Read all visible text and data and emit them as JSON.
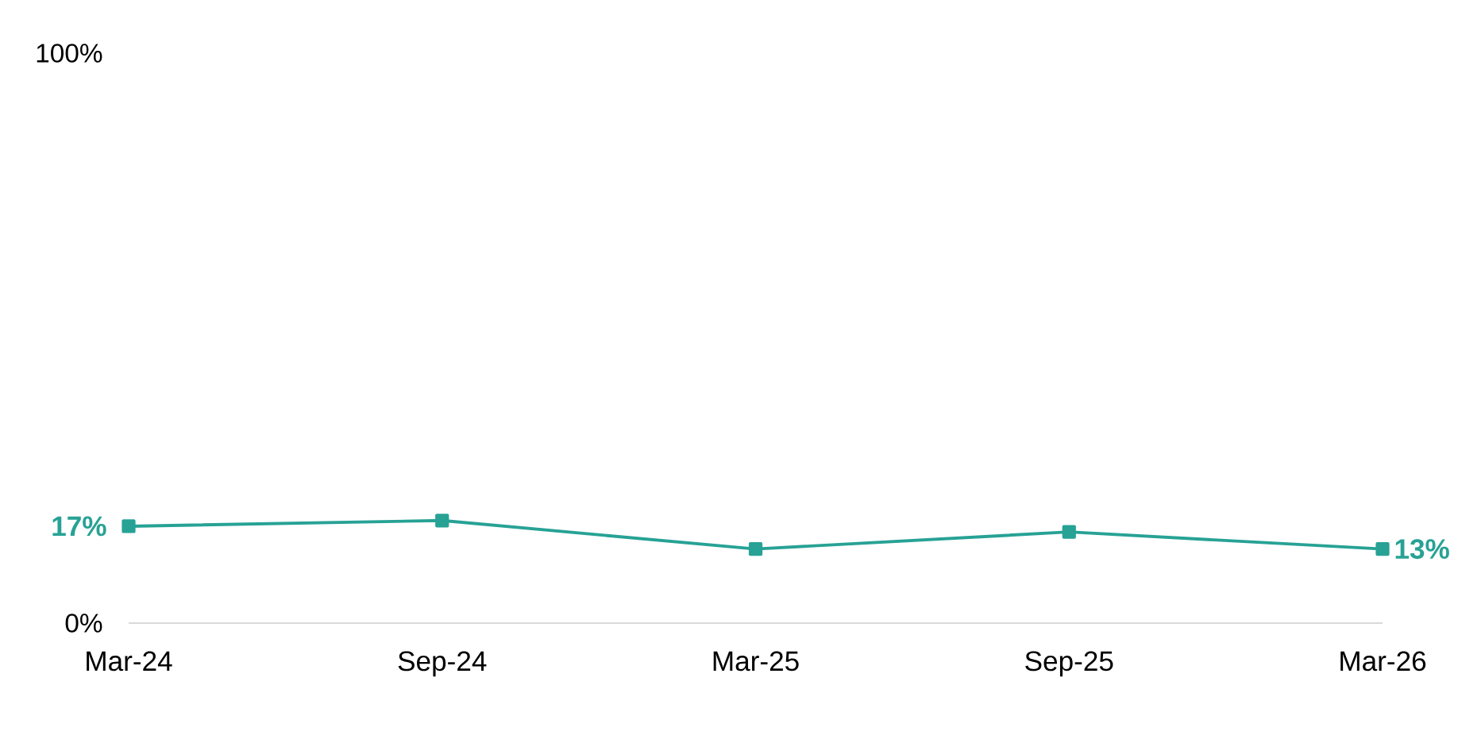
{
  "chart_data": {
    "type": "line",
    "categories": [
      "Mar-24",
      "Sep-24",
      "Mar-25",
      "Sep-25",
      "Mar-26"
    ],
    "series": [
      {
        "color": "#27a295",
        "values": [
          17,
          18,
          13,
          16,
          13
        ],
        "value_labels": [
          "17%",
          null,
          null,
          null,
          "13%"
        ]
      }
    ],
    "ylim": [
      0,
      100
    ],
    "yticks": [
      {
        "value": 0,
        "label": "0%"
      },
      {
        "value": 100,
        "label": "100%"
      }
    ],
    "marker": "square",
    "line_style": "solid"
  }
}
